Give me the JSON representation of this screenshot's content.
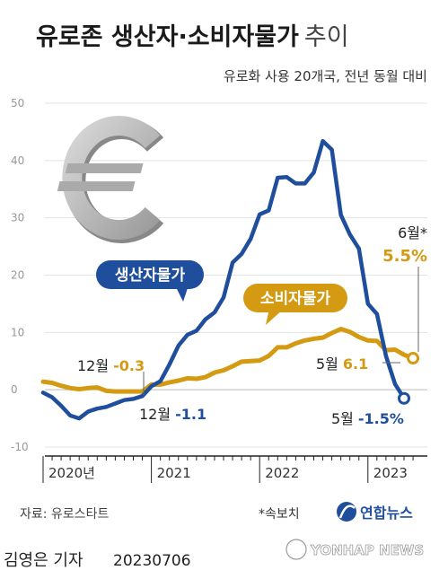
{
  "chart_data": {
    "type": "line",
    "title": "유로존 생산자·소비자물가",
    "title_suffix": "추이",
    "subtitle": "유로화 사용 20개국, 전년 동월 대비",
    "ylim": [
      -10,
      50
    ],
    "yticks": [
      "50",
      "40",
      "30",
      "20",
      "10",
      "0",
      "-10"
    ],
    "ytick_values": [
      50,
      40,
      30,
      20,
      10,
      0,
      -10
    ],
    "grid": true,
    "xaxis_year_labels": [
      "2020년",
      "2021",
      "2022",
      "2023"
    ],
    "x": [
      "2020-01",
      "2020-02",
      "2020-03",
      "2020-04",
      "2020-05",
      "2020-06",
      "2020-07",
      "2020-08",
      "2020-09",
      "2020-10",
      "2020-11",
      "2020-12",
      "2021-01",
      "2021-02",
      "2021-03",
      "2021-04",
      "2021-05",
      "2021-06",
      "2021-07",
      "2021-08",
      "2021-09",
      "2021-10",
      "2021-11",
      "2021-12",
      "2022-01",
      "2022-02",
      "2022-03",
      "2022-04",
      "2022-05",
      "2022-06",
      "2022-07",
      "2022-08",
      "2022-09",
      "2022-10",
      "2022-11",
      "2022-12",
      "2023-01",
      "2023-02",
      "2023-03",
      "2023-04",
      "2023-05",
      "2023-06"
    ],
    "series": [
      {
        "name": "생산자물가",
        "color": "#1f4e9c",
        "values": [
          -0.5,
          -1.3,
          -2.8,
          -4.5,
          -5.0,
          -3.8,
          -3.3,
          -3.0,
          -2.4,
          -1.8,
          -1.6,
          -1.1,
          0.6,
          1.5,
          4.4,
          7.7,
          9.6,
          10.3,
          12.3,
          13.5,
          16.1,
          22.2,
          23.7,
          26.3,
          30.6,
          31.3,
          37.0,
          37.1,
          36.0,
          36.0,
          37.9,
          43.4,
          41.9,
          30.5,
          27.1,
          24.6,
          15.0,
          13.2,
          5.9,
          1.0,
          -1.5,
          null
        ]
      },
      {
        "name": "소비자물가",
        "color": "#d49a12",
        "values": [
          1.4,
          1.2,
          0.7,
          0.3,
          0.1,
          0.3,
          0.4,
          -0.2,
          -0.3,
          -0.3,
          -0.3,
          -0.3,
          0.9,
          0.9,
          1.3,
          1.6,
          2.0,
          1.9,
          2.2,
          3.0,
          3.4,
          4.1,
          4.9,
          5.0,
          5.1,
          5.9,
          7.4,
          7.4,
          8.1,
          8.6,
          8.9,
          9.1,
          9.9,
          10.6,
          10.1,
          9.2,
          8.6,
          8.5,
          6.9,
          7.0,
          6.1,
          5.5
        ]
      }
    ],
    "labels": {
      "producer_pill": "생산자물가",
      "consumer_pill": "소비자물가",
      "dec2020_consumer_month": "12월",
      "dec2020_consumer_value": "-0.3",
      "dec2020_producer_month": "12월",
      "dec2020_producer_value": "-1.1",
      "may2023_consumer_month": "5월",
      "may2023_consumer_value": "6.1",
      "may2023_producer_month": "5월",
      "may2023_producer_value": "-1.5%",
      "jun2023_consumer_month": "6월*",
      "jun2023_consumer_value": "5.5%"
    }
  },
  "footer": {
    "source": "자료: 유로스타트",
    "note": "*속보치",
    "logo_text": "연합뉴스"
  },
  "credit": {
    "name": "김영은 기자",
    "date": "20230706",
    "watermark": "YONHAP NEWS"
  },
  "icons": {
    "euro": "euro-sign-icon",
    "logo": "yonhap-logo-icon"
  }
}
